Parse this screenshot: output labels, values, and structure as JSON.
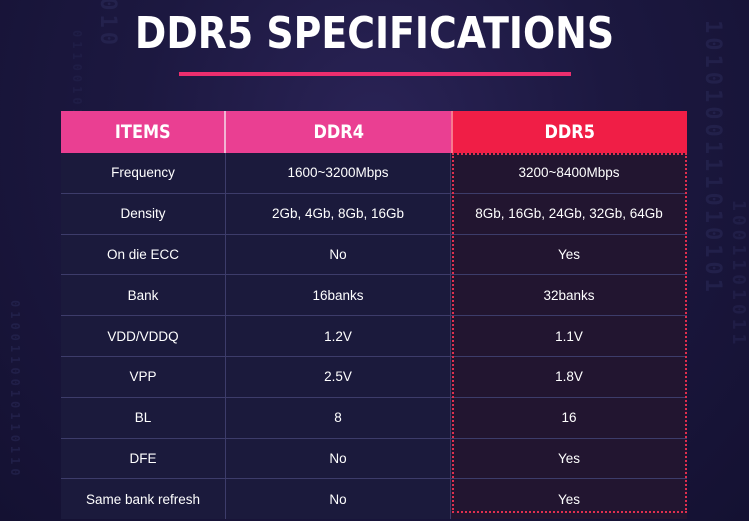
{
  "title": "DDR5 SPECIFICATIONS",
  "background_digits": {
    "left_1": "0100110010110110",
    "left_2": "01100101101",
    "top_1": "1010",
    "right_1": "1010100111010101",
    "right_2": "1001101011"
  },
  "colors": {
    "background": "#1c1840",
    "header_pink": "#ea3f92",
    "header_red": "#f01e46",
    "accent_underline": "#ec2e6e",
    "outline_red": "#e02f4f"
  },
  "table": {
    "headers": [
      "ITEMS",
      "DDR4",
      "DDR5"
    ],
    "rows": [
      [
        "Frequency",
        "1600~3200Mbps",
        "3200~8400Mbps"
      ],
      [
        "Density",
        "2Gb, 4Gb, 8Gb, 16Gb",
        "8Gb, 16Gb, 24Gb, 32Gb, 64Gb"
      ],
      [
        "On die ECC",
        "No",
        "Yes"
      ],
      [
        "Bank",
        "16banks",
        "32banks"
      ],
      [
        "VDD/VDDQ",
        "1.2V",
        "1.1V"
      ],
      [
        "VPP",
        "2.5V",
        "1.8V"
      ],
      [
        "BL",
        "8",
        "16"
      ],
      [
        "DFE",
        "No",
        "Yes"
      ],
      [
        "Same bank refresh",
        "No",
        "Yes"
      ]
    ]
  }
}
